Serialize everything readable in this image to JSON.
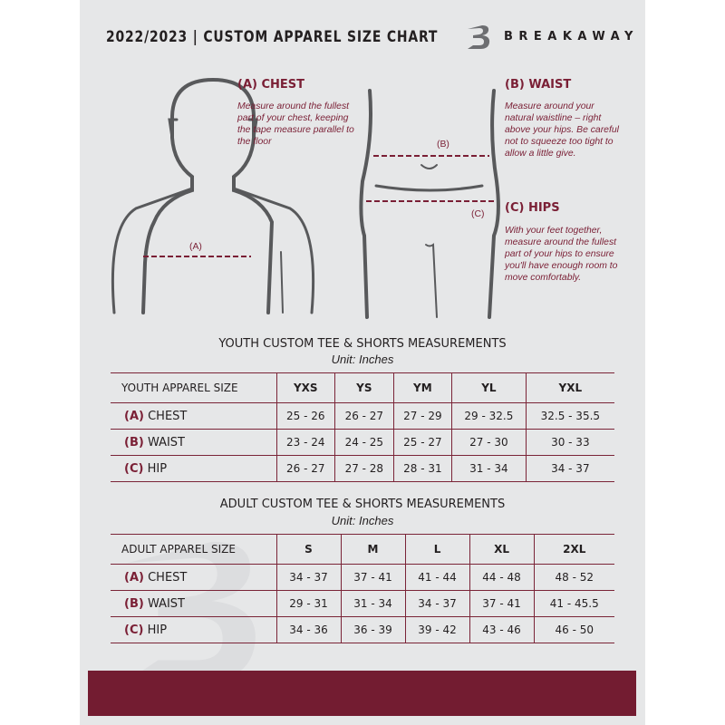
{
  "header": {
    "title": "2022/2023  |  CUSTOM APPAREL SIZE CHART",
    "brand": "BREAKAWAY"
  },
  "chest": {
    "heading": "(A) CHEST",
    "text": "Measure around the fullest part of your chest, keeping the tape measure parallel to the floor",
    "marker": "(A)"
  },
  "waist": {
    "heading": "(B) WAIST",
    "text": "Measure around your natural waistline – right above your hips. Be careful not to squeeze too tight to allow a little give.",
    "marker": "(B)"
  },
  "hips": {
    "heading": "(C) HIPS",
    "text": "With your feet together, measure around the fullest part of your hips to ensure you'll have enough room to move comfortably.",
    "marker": "(C)"
  },
  "youth": {
    "title": "YOUTH CUSTOM TEE & SHORTS MEASUREMENTS",
    "unit": "Unit: Inches",
    "header": [
      "YOUTH APPAREL SIZE",
      "YXS",
      "YS",
      "YM",
      "YL",
      "YXL"
    ],
    "rows": [
      {
        "letter": "(A)",
        "name": "CHEST",
        "values": [
          "25 - 26",
          "26 - 27",
          "27 - 29",
          "29 - 32.5",
          "32.5 - 35.5"
        ]
      },
      {
        "letter": "(B)",
        "name": "WAIST",
        "values": [
          "23 - 24",
          "24 - 25",
          "25 - 27",
          "27 - 30",
          "30 - 33"
        ]
      },
      {
        "letter": "(C)",
        "name": "HIP",
        "values": [
          "26 - 27",
          "27 - 28",
          "28 - 31",
          "31 - 34",
          "34 - 37"
        ]
      }
    ]
  },
  "adult": {
    "title": "ADULT CUSTOM TEE & SHORTS MEASUREMENTS",
    "unit": "Unit: Inches",
    "header": [
      "ADULT APPAREL SIZE",
      "S",
      "M",
      "L",
      "XL",
      "2XL"
    ],
    "rows": [
      {
        "letter": "(A)",
        "name": "CHEST",
        "values": [
          "34 - 37",
          "37 - 41",
          "41 - 44",
          "44 - 48",
          "48 - 52"
        ]
      },
      {
        "letter": "(B)",
        "name": "WAIST",
        "values": [
          "29 - 31",
          "31 - 34",
          "34 - 37",
          "37 - 41",
          "41 - 45.5"
        ]
      },
      {
        "letter": "(C)",
        "name": "HIP",
        "values": [
          "34 - 36",
          "36 - 39",
          "39 - 42",
          "43 - 46",
          "46 - 50"
        ]
      }
    ]
  },
  "colors": {
    "accent": "#7a1f35",
    "band": "#731c31",
    "background": "#e6e7e8"
  }
}
